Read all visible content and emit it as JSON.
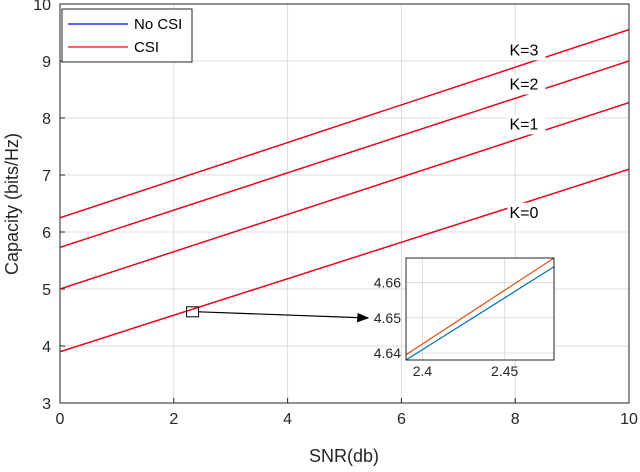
{
  "chart_data": {
    "type": "line",
    "title": "",
    "xlabel": "SNR(db)",
    "ylabel": "Capacity (bits/Hz)",
    "xlim": [
      0,
      10
    ],
    "ylim": [
      3,
      10
    ],
    "xticks": [
      "0",
      "2",
      "4",
      "6",
      "8",
      "10"
    ],
    "yticks": [
      "3",
      "4",
      "5",
      "6",
      "7",
      "8",
      "9",
      "10"
    ],
    "grid": true,
    "legend_position": "top-left",
    "legend": [
      {
        "label": "No CSI",
        "color": "#0000ff"
      },
      {
        "label": "CSI",
        "color": "#ff0000"
      }
    ],
    "series": [
      {
        "name": "No CSI",
        "curve": "K=0",
        "x": [
          0,
          10
        ],
        "y": [
          3.9,
          7.1
        ],
        "color": "#0000ff"
      },
      {
        "name": "CSI",
        "curve": "K=0",
        "x": [
          0,
          10
        ],
        "y": [
          3.9,
          7.1
        ],
        "color": "#ff0000"
      },
      {
        "name": "No CSI",
        "curve": "K=1",
        "x": [
          0,
          10
        ],
        "y": [
          5.0,
          8.27
        ],
        "color": "#0000ff"
      },
      {
        "name": "CSI",
        "curve": "K=1",
        "x": [
          0,
          10
        ],
        "y": [
          5.0,
          8.27
        ],
        "color": "#ff0000"
      },
      {
        "name": "No CSI",
        "curve": "K=2",
        "x": [
          0,
          10
        ],
        "y": [
          5.73,
          9.0
        ],
        "color": "#0000ff"
      },
      {
        "name": "CSI",
        "curve": "K=2",
        "x": [
          0,
          10
        ],
        "y": [
          5.73,
          9.0
        ],
        "color": "#ff0000"
      },
      {
        "name": "No CSI",
        "curve": "K=3",
        "x": [
          0,
          10
        ],
        "y": [
          6.25,
          9.55
        ],
        "color": "#0000ff"
      },
      {
        "name": "CSI",
        "curve": "K=3",
        "x": [
          0,
          10
        ],
        "y": [
          6.25,
          9.55
        ],
        "color": "#ff0000"
      }
    ],
    "curve_labels": [
      {
        "text": "K=3",
        "x": 7.9,
        "y": 9.1
      },
      {
        "text": "K=2",
        "x": 7.9,
        "y": 8.5
      },
      {
        "text": "K=1",
        "x": 7.9,
        "y": 7.8
      },
      {
        "text": "K=0",
        "x": 7.9,
        "y": 6.25
      }
    ],
    "zoom_box_center": {
      "x": 2.33,
      "y": 4.6
    },
    "inset": {
      "xlim": [
        2.39,
        2.48
      ],
      "ylim": [
        4.638,
        4.667
      ],
      "xticks": [
        {
          "value": 2.4,
          "label": "2.4"
        },
        {
          "value": 2.45,
          "label": "2.45"
        }
      ],
      "yticks": [
        {
          "value": 4.64,
          "label": "4.64"
        },
        {
          "value": 4.65,
          "label": "4.65"
        },
        {
          "value": 4.66,
          "label": "4.66"
        }
      ],
      "series": [
        {
          "x": [
            2.39,
            2.48
          ],
          "y": [
            4.638,
            4.6645
          ],
          "color": "#0072bd"
        },
        {
          "x": [
            2.39,
            2.48
          ],
          "y": [
            4.6395,
            4.667
          ],
          "color": "#d95319"
        }
      ]
    }
  }
}
